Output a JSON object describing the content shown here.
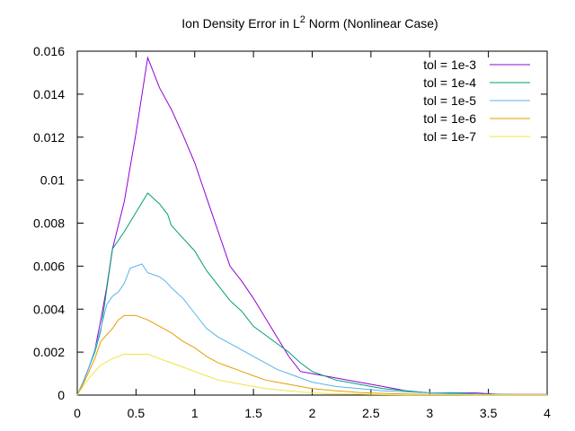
{
  "chart_data": {
    "type": "line",
    "title": {
      "prefix": "Ion Density Error in L",
      "superscript": "2",
      "suffix": " Norm (Nonlinear Case)"
    },
    "xlim": [
      0,
      4
    ],
    "ylim": [
      0,
      0.016
    ],
    "xticks": [
      0,
      0.5,
      1,
      1.5,
      2,
      2.5,
      3,
      3.5,
      4
    ],
    "xtick_labels": [
      "0",
      "0.5",
      "1",
      "1.5",
      "2",
      "2.5",
      "3",
      "3.5",
      "4"
    ],
    "yticks": [
      0,
      0.002,
      0.004,
      0.006,
      0.008,
      0.01,
      0.012,
      0.014,
      0.016
    ],
    "ytick_labels": [
      "0",
      "0.002",
      "0.004",
      "0.006",
      "0.008",
      "0.01",
      "0.012",
      "0.014",
      "0.016"
    ],
    "grid": false,
    "legend_position": "top-right",
    "series": [
      {
        "name": "tol = 1e-3",
        "color": "#9400d3",
        "x": [
          0,
          0.05,
          0.1,
          0.15,
          0.2,
          0.25,
          0.3,
          0.4,
          0.5,
          0.6,
          0.65,
          0.7,
          0.8,
          0.9,
          1.0,
          1.1,
          1.2,
          1.3,
          1.4,
          1.5,
          1.6,
          1.7,
          1.8,
          1.9,
          2.0,
          2.2,
          2.4,
          2.6,
          2.8,
          3.0,
          3.2,
          3.4,
          3.6,
          3.8,
          4.0
        ],
        "y": [
          0,
          0.0006,
          0.0013,
          0.0021,
          0.0035,
          0.005,
          0.0068,
          0.009,
          0.0122,
          0.0157,
          0.015,
          0.0143,
          0.0133,
          0.0121,
          0.0108,
          0.0092,
          0.0076,
          0.006,
          0.0053,
          0.0045,
          0.0036,
          0.0027,
          0.0018,
          0.0011,
          0.001,
          0.0008,
          0.0006,
          0.0004,
          0.0002,
          0.0001,
          0.0001,
          0.0001,
          3e-05,
          3e-05,
          3e-05
        ]
      },
      {
        "name": "tol = 1e-4",
        "color": "#009e73",
        "x": [
          0,
          0.05,
          0.1,
          0.15,
          0.2,
          0.3,
          0.4,
          0.5,
          0.6,
          0.7,
          0.77,
          0.8,
          0.9,
          1.0,
          1.1,
          1.2,
          1.3,
          1.4,
          1.5,
          1.6,
          1.7,
          1.8,
          1.9,
          2.0,
          2.2,
          2.4,
          2.6,
          2.8,
          3.0,
          3.2,
          3.4,
          3.6,
          3.8,
          4.0
        ],
        "y": [
          0,
          0.0006,
          0.0013,
          0.002,
          0.003,
          0.0068,
          0.0076,
          0.0085,
          0.0094,
          0.0089,
          0.0084,
          0.0079,
          0.0073,
          0.0067,
          0.0058,
          0.0051,
          0.0044,
          0.0039,
          0.0032,
          0.0028,
          0.0024,
          0.002,
          0.0015,
          0.0011,
          0.0007,
          0.0005,
          0.0003,
          0.0002,
          0.0001,
          0.0001,
          5e-05,
          3e-05,
          2e-05,
          2e-05
        ]
      },
      {
        "name": "tol = 1e-5",
        "color": "#56b4e9",
        "x": [
          0,
          0.05,
          0.1,
          0.15,
          0.2,
          0.25,
          0.3,
          0.35,
          0.4,
          0.45,
          0.5,
          0.55,
          0.6,
          0.65,
          0.7,
          0.75,
          0.8,
          0.9,
          1.0,
          1.1,
          1.2,
          1.3,
          1.4,
          1.5,
          1.6,
          1.7,
          1.8,
          1.9,
          2.0,
          2.2,
          2.4,
          2.6,
          2.8,
          3.0,
          3.2,
          3.4,
          3.6,
          3.8,
          4.0
        ],
        "y": [
          0,
          0.0006,
          0.0013,
          0.0021,
          0.0031,
          0.0042,
          0.0046,
          0.0048,
          0.0052,
          0.0059,
          0.006,
          0.0061,
          0.0057,
          0.0056,
          0.0055,
          0.0053,
          0.005,
          0.0045,
          0.0038,
          0.0031,
          0.0027,
          0.0024,
          0.0021,
          0.0018,
          0.0015,
          0.0012,
          0.001,
          0.0008,
          0.0006,
          0.0004,
          0.0003,
          0.0002,
          0.00015,
          0.0001,
          6e-05,
          4e-05,
          2e-05,
          2e-05,
          2e-05
        ]
      },
      {
        "name": "tol = 1e-6",
        "color": "#e69f00",
        "x": [
          0,
          0.05,
          0.1,
          0.15,
          0.2,
          0.25,
          0.3,
          0.35,
          0.4,
          0.45,
          0.5,
          0.55,
          0.6,
          0.7,
          0.8,
          0.9,
          1.0,
          1.1,
          1.2,
          1.3,
          1.4,
          1.5,
          1.6,
          1.7,
          1.8,
          1.9,
          2.0,
          2.2,
          2.4,
          2.6,
          2.8,
          3.0,
          3.2,
          3.4,
          3.6,
          3.8,
          4.0
        ],
        "y": [
          0,
          0.0005,
          0.0011,
          0.0017,
          0.0025,
          0.0028,
          0.0031,
          0.0035,
          0.0037,
          0.0037,
          0.0037,
          0.0036,
          0.0035,
          0.0032,
          0.0029,
          0.0025,
          0.0022,
          0.0018,
          0.0015,
          0.0013,
          0.0011,
          0.0009,
          0.0007,
          0.0006,
          0.0005,
          0.0004,
          0.0003,
          0.0002,
          0.00012,
          8e-05,
          5e-05,
          3e-05,
          2e-05,
          1e-05,
          1e-05,
          1e-05,
          1e-05
        ]
      },
      {
        "name": "tol = 1e-7",
        "color": "#f0e442",
        "x": [
          0,
          0.05,
          0.1,
          0.15,
          0.2,
          0.3,
          0.4,
          0.5,
          0.6,
          0.7,
          0.8,
          0.9,
          1.0,
          1.1,
          1.2,
          1.3,
          1.4,
          1.5,
          1.6,
          1.7,
          1.8,
          1.9,
          2.0,
          2.2,
          2.4,
          2.6,
          2.8,
          3.0,
          3.2,
          3.4,
          3.6,
          3.8,
          4.0
        ],
        "y": [
          0,
          0.0004,
          0.0008,
          0.0011,
          0.0014,
          0.0017,
          0.0019,
          0.0019,
          0.0019,
          0.0017,
          0.0015,
          0.0013,
          0.0011,
          0.0009,
          0.0007,
          0.0006,
          0.0005,
          0.0004,
          0.0003,
          0.00025,
          0.0002,
          0.00015,
          0.0001,
          6e-05,
          4e-05,
          2e-05,
          1e-05,
          1e-05,
          1e-05,
          1e-05,
          1e-05,
          1e-05,
          1e-05
        ]
      }
    ]
  }
}
